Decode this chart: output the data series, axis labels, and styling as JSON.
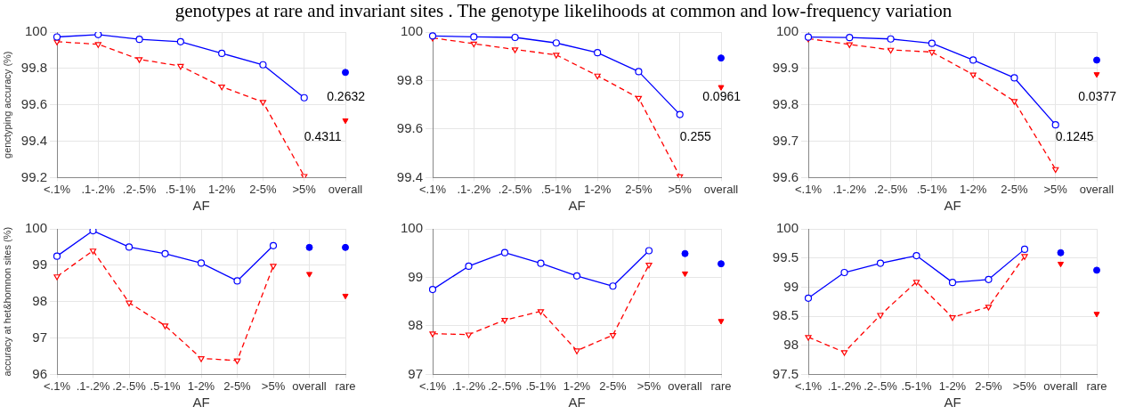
{
  "chart_data": [
    {
      "type": "line",
      "ylabel": "genctyping accuracy (%)",
      "xlabel": "AF",
      "categories": [
        "<.1%",
        ".1-.2%",
        ".2-.5%",
        ".5-1%",
        "1-2%",
        "2-5%",
        ">5%",
        "overall"
      ],
      "ylim": [
        99.2,
        100
      ],
      "yticks": [
        99.2,
        99.4,
        99.6,
        99.8,
        100
      ],
      "grid": true,
      "legend": false,
      "series": [
        {
          "type": "line",
          "color": "#ff0000",
          "marker": "triangle",
          "line_style": "dashed",
          "values": [
            99.947,
            99.933,
            99.85,
            99.813,
            99.7,
            99.615,
            99.208,
            null
          ]
        },
        {
          "type": "line",
          "color": "#0000ff",
          "marker": "circle",
          "line_style": "solid",
          "values": [
            99.973,
            99.986,
            99.96,
            99.947,
            99.883,
            99.82,
            99.639,
            null
          ]
        },
        {
          "type": "scatter",
          "color": "#0000ff",
          "marker": "circle",
          "x": [
            "overall"
          ],
          "values": [
            99.778
          ]
        },
        {
          "type": "scatter",
          "color": "#ff0000",
          "marker": "triangle",
          "x": [
            "overall"
          ],
          "values": [
            99.514
          ]
        }
      ],
      "title": "genotypes at rare and invariant sites . The genotype likelihoods at common and low-frequency variation",
      "annotations": [
        "0.2632",
        "0.4311"
      ]
    },
    {
      "type": "line",
      "xlabel": "AF",
      "categories": [
        "<.1%",
        ".1-.2%",
        ".2-.5%",
        ".5-1%",
        "1-2%",
        "2-5%",
        ">5%",
        "overall"
      ],
      "ylim": [
        99.4,
        100
      ],
      "yticks": [
        99.4,
        99.6,
        99.8,
        100
      ],
      "grid": true,
      "legend": false,
      "series": [
        {
          "type": "line",
          "color": "#ff0000",
          "marker": "triangle",
          "line_style": "dashed",
          "values": [
            99.976,
            99.952,
            99.928,
            99.906,
            99.82,
            99.728,
            99.405,
            null
          ]
        },
        {
          "type": "line",
          "color": "#0000ff",
          "marker": "circle",
          "line_style": "solid",
          "values": [
            99.984,
            99.98,
            99.978,
            99.955,
            99.915,
            99.837,
            99.66,
            null
          ]
        },
        {
          "type": "scatter",
          "color": "#0000ff",
          "marker": "circle",
          "x": [
            "overall"
          ],
          "values": [
            99.893
          ]
        },
        {
          "type": "scatter",
          "color": "#ff0000",
          "marker": "triangle",
          "x": [
            "overall"
          ],
          "values": [
            99.773
          ]
        }
      ],
      "annotations": [
        "0.0961",
        "0.255"
      ]
    },
    {
      "type": "line",
      "xlabel": "AF",
      "categories": [
        "<.1%",
        ".1-.2%",
        ".2-.5%",
        ".5-1%",
        "1-2%",
        "2-5%",
        ">5%",
        "overall"
      ],
      "ylim": [
        99.6,
        100
      ],
      "yticks": [
        99.6,
        99.7,
        99.8,
        99.9,
        100
      ],
      "grid": true,
      "legend": false,
      "series": [
        {
          "type": "line",
          "color": "#ff0000",
          "marker": "triangle",
          "line_style": "dashed",
          "values": [
            99.982,
            99.966,
            99.951,
            99.945,
            99.883,
            99.81,
            99.623,
            null
          ]
        },
        {
          "type": "line",
          "color": "#0000ff",
          "marker": "circle",
          "line_style": "solid",
          "values": [
            99.986,
            99.985,
            99.981,
            99.969,
            99.923,
            99.874,
            99.745,
            null
          ]
        },
        {
          "type": "scatter",
          "color": "#0000ff",
          "marker": "circle",
          "x": [
            "overall"
          ],
          "values": [
            99.923
          ]
        },
        {
          "type": "scatter",
          "color": "#ff0000",
          "marker": "triangle",
          "x": [
            "overall"
          ],
          "values": [
            99.884
          ]
        }
      ],
      "annotations": [
        "0.0377",
        "0.1245"
      ]
    },
    {
      "type": "line",
      "ylabel": "accuracy at het&homnon sites (%)",
      "xlabel": "AF",
      "categories": [
        "<.1%",
        ".1-.2%",
        ".2-.5%",
        ".5-1%",
        "1-2%",
        "2-5%",
        ">5%",
        "overall",
        "rare"
      ],
      "ylim": [
        96,
        100
      ],
      "yticks": [
        96,
        97,
        98,
        99,
        100
      ],
      "grid": true,
      "legend": false,
      "series": [
        {
          "type": "line",
          "color": "#ff0000",
          "marker": "triangle",
          "line_style": "dashed",
          "values": [
            98.69,
            99.4,
            97.97,
            97.34,
            96.44,
            96.38,
            98.98,
            null,
            null
          ]
        },
        {
          "type": "line",
          "color": "#0000ff",
          "marker": "circle",
          "line_style": "solid",
          "values": [
            99.25,
            99.95,
            99.5,
            99.32,
            99.06,
            98.57,
            99.54,
            null,
            null
          ]
        },
        {
          "type": "scatter",
          "color": "#0000ff",
          "marker": "circle",
          "x": [
            "overall",
            "rare"
          ],
          "values": [
            99.49,
            99.49
          ]
        },
        {
          "type": "scatter",
          "color": "#ff0000",
          "marker": "triangle",
          "x": [
            "overall",
            "rare"
          ],
          "values": [
            98.76,
            98.16
          ]
        }
      ]
    },
    {
      "type": "line",
      "xlabel": "AF",
      "categories": [
        "<.1%",
        ".1-.2%",
        ".2-.5%",
        ".5-1%",
        "1-2%",
        "2-5%",
        ">5%",
        "overall",
        "rare"
      ],
      "ylim": [
        97,
        100
      ],
      "yticks": [
        97,
        98,
        99,
        100
      ],
      "grid": true,
      "legend": false,
      "series": [
        {
          "type": "line",
          "color": "#ff0000",
          "marker": "triangle",
          "line_style": "dashed",
          "values": [
            97.84,
            97.82,
            98.12,
            98.3,
            97.49,
            97.81,
            99.26,
            null,
            null
          ]
        },
        {
          "type": "line",
          "color": "#0000ff",
          "marker": "circle",
          "line_style": "solid",
          "values": [
            98.75,
            99.23,
            99.51,
            99.29,
            99.03,
            98.82,
            99.55,
            null,
            null
          ]
        },
        {
          "type": "scatter",
          "color": "#0000ff",
          "marker": "circle",
          "x": [
            "overall",
            "rare"
          ],
          "values": [
            99.49,
            99.28
          ]
        },
        {
          "type": "scatter",
          "color": "#ff0000",
          "marker": "triangle",
          "x": [
            "overall",
            "rare"
          ],
          "values": [
            99.08,
            98.1
          ]
        }
      ]
    },
    {
      "type": "line",
      "xlabel": "AF",
      "categories": [
        "<.1%",
        ".1-.2%",
        ".2-.5%",
        ".5-1%",
        "1-2%",
        "2-5%",
        ">5%",
        "overall",
        "rare"
      ],
      "ylim": [
        97.5,
        100
      ],
      "yticks": [
        97.5,
        98,
        98.5,
        99,
        99.5,
        100
      ],
      "grid": true,
      "legend": false,
      "series": [
        {
          "type": "line",
          "color": "#ff0000",
          "marker": "triangle",
          "line_style": "dashed",
          "values": [
            98.14,
            97.88,
            98.52,
            99.09,
            98.48,
            98.66,
            99.53,
            null,
            null
          ]
        },
        {
          "type": "line",
          "color": "#0000ff",
          "marker": "circle",
          "line_style": "solid",
          "values": [
            98.81,
            99.25,
            99.41,
            99.54,
            99.08,
            99.13,
            99.65,
            null,
            null
          ]
        },
        {
          "type": "scatter",
          "color": "#0000ff",
          "marker": "circle",
          "x": [
            "overall",
            "rare"
          ],
          "values": [
            99.59,
            99.29
          ]
        },
        {
          "type": "scatter",
          "color": "#ff0000",
          "marker": "triangle",
          "x": [
            "overall",
            "rare"
          ],
          "values": [
            99.4,
            98.54
          ]
        }
      ]
    }
  ]
}
